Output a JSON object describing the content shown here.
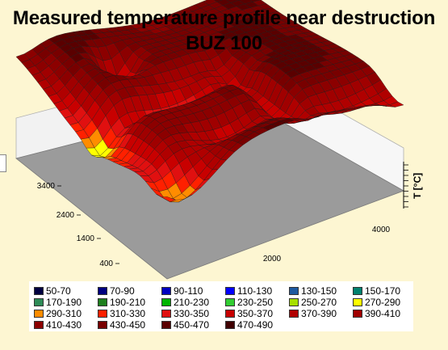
{
  "title": "Measured temperature profile near destruction",
  "subtitle": "BUZ 100",
  "chart_data": {
    "type": "surface-3d",
    "title": "Measured temperature profile near destruction",
    "subtitle": "BUZ 100",
    "zlabel": "T [°C]",
    "y_ticks": [
      "3400",
      "2400",
      "1400",
      "400"
    ],
    "x_ticks": [
      "2000",
      "4000"
    ],
    "legend_placement": "bottom",
    "legend": [
      {
        "label": "50-70",
        "color": "#000040"
      },
      {
        "label": "70-90",
        "color": "#000080"
      },
      {
        "label": "90-110",
        "color": "#0000c0"
      },
      {
        "label": "110-130",
        "color": "#0000ff"
      },
      {
        "label": "130-150",
        "color": "#1e5aa0"
      },
      {
        "label": "150-170",
        "color": "#00806e"
      },
      {
        "label": "170-190",
        "color": "#2e8b57"
      },
      {
        "label": "190-210",
        "color": "#1e7f1e"
      },
      {
        "label": "210-230",
        "color": "#00b400"
      },
      {
        "label": "230-250",
        "color": "#32cd32"
      },
      {
        "label": "250-270",
        "color": "#a6e000"
      },
      {
        "label": "270-290",
        "color": "#ffff00"
      },
      {
        "label": "290-310",
        "color": "#ff8c00"
      },
      {
        "label": "310-330",
        "color": "#ff2000"
      },
      {
        "label": "330-350",
        "color": "#e01010"
      },
      {
        "label": "350-370",
        "color": "#c80000"
      },
      {
        "label": "370-390",
        "color": "#b00000"
      },
      {
        "label": "390-410",
        "color": "#a00000"
      },
      {
        "label": "410-430",
        "color": "#8c0000"
      },
      {
        "label": "430-450",
        "color": "#780000"
      },
      {
        "label": "450-470",
        "color": "#5a0000"
      },
      {
        "label": "470-490",
        "color": "#400000"
      }
    ]
  }
}
